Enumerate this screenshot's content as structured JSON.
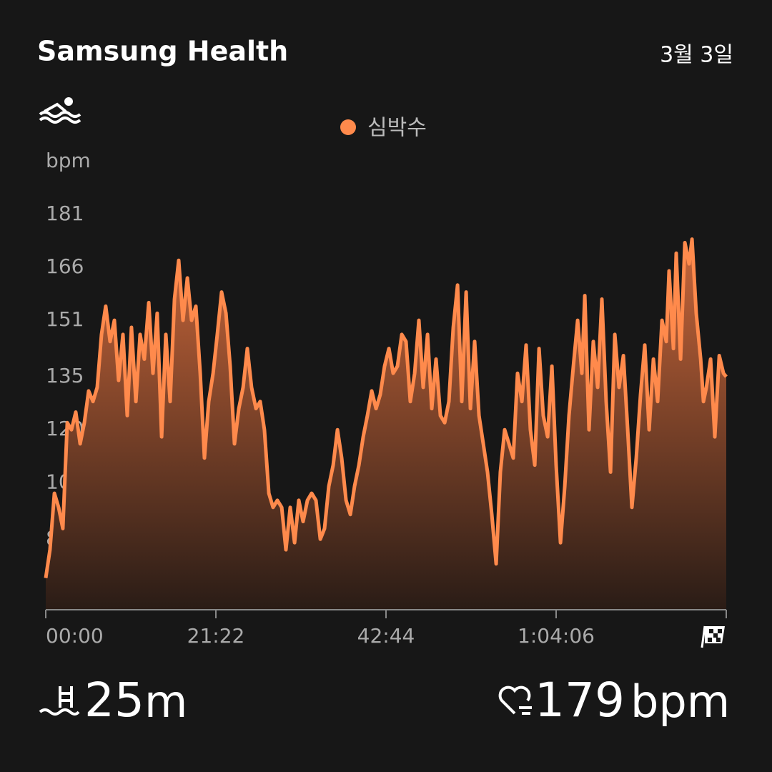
{
  "header": {
    "title": "Samsung Health",
    "date": "3월 3일"
  },
  "chart_data": {
    "type": "area",
    "y_label": "bpm",
    "x": [
      0,
      32,
      65,
      97,
      129,
      162,
      194,
      226,
      259,
      291,
      323,
      356,
      388,
      420,
      452,
      485,
      517,
      549,
      582,
      614,
      646,
      679,
      711,
      743,
      776,
      808,
      840,
      873,
      905,
      937,
      970,
      1002,
      1034,
      1067,
      1099,
      1131,
      1164,
      1196,
      1228,
      1261,
      1293,
      1325,
      1358,
      1390,
      1422,
      1455,
      1487,
      1519,
      1551,
      1584,
      1616,
      1648,
      1681,
      1713,
      1745,
      1778,
      1810,
      1842,
      1875,
      1907,
      1939,
      1972,
      2004,
      2036,
      2069,
      2101,
      2133,
      2166,
      2198,
      2230,
      2263,
      2295,
      2327,
      2360,
      2392,
      2424,
      2456,
      2489,
      2521,
      2553,
      2586,
      2618,
      2650,
      2683,
      2715,
      2747,
      2780,
      2812,
      2844,
      2877,
      2909,
      2941,
      2974,
      3006,
      3038,
      3071,
      3103,
      3135,
      3168,
      3200,
      3232,
      3265,
      3297,
      3329,
      3361,
      3394,
      3426,
      3458,
      3491,
      3523,
      3555,
      3588,
      3620,
      3652,
      3685,
      3717,
      3749,
      3782,
      3814,
      3846,
      3879,
      3911,
      3943,
      3976,
      4008,
      4040,
      4062,
      4094,
      4126,
      4159,
      4191,
      4223,
      4256,
      4288,
      4320,
      4353,
      4385,
      4417,
      4450,
      4482,
      4514,
      4547,
      4579,
      4611,
      4644,
      4676,
      4697,
      4730,
      4751,
      4784,
      4816,
      4848,
      4870,
      4902,
      4935,
      4956,
      4978,
      5010,
      5042,
      5075,
      5107,
      5128
    ],
    "series": [
      {
        "name": "심박수",
        "color": "#ff8a4c",
        "values": [
          78,
          86,
          102,
          98,
          92,
          122,
          120,
          125,
          116,
          122,
          131,
          128,
          132,
          147,
          155,
          145,
          151,
          134,
          147,
          124,
          149,
          128,
          147,
          140,
          156,
          136,
          153,
          118,
          147,
          128,
          157,
          168,
          151,
          163,
          151,
          155,
          136,
          112,
          128,
          136,
          147,
          159,
          153,
          138,
          116,
          126,
          132,
          143,
          132,
          126,
          128,
          120,
          102,
          98,
          100,
          98,
          86,
          98,
          88,
          100,
          94,
          100,
          102,
          100,
          89,
          92,
          104,
          110,
          120,
          112,
          100,
          96,
          104,
          110,
          118,
          124,
          131,
          126,
          130,
          138,
          143,
          136,
          138,
          147,
          145,
          128,
          136,
          151,
          132,
          147,
          126,
          140,
          124,
          122,
          128,
          149,
          161,
          128,
          159,
          126,
          145,
          124,
          116,
          108,
          96,
          82,
          108,
          120,
          116,
          112,
          136,
          128,
          144,
          120,
          110,
          143,
          124,
          118,
          138,
          110,
          88,
          104,
          124,
          138,
          151,
          136,
          158,
          120,
          145,
          132,
          157,
          128,
          108,
          147,
          132,
          141,
          120,
          98,
          112,
          130,
          144,
          120,
          140,
          128,
          151,
          145,
          165,
          143,
          170,
          140,
          173,
          167,
          174,
          153,
          140,
          128,
          132,
          140,
          118,
          141,
          136,
          135
        ]
      }
    ],
    "xlim": [
      0,
      5128
    ],
    "xticks": [
      {
        "value": 0,
        "label": "00:00"
      },
      {
        "value": 1282,
        "label": "21:22"
      },
      {
        "value": 2564,
        "label": "42:44"
      },
      {
        "value": 3846,
        "label": "1:04:06"
      }
    ],
    "ylim": [
      69,
      181
    ],
    "yticks": [
      181,
      166,
      151,
      135,
      120,
      105,
      89
    ]
  },
  "stats": {
    "pool_length": "25",
    "pool_unit": "m",
    "max_hr": "179",
    "max_hr_unit": "bpm"
  }
}
